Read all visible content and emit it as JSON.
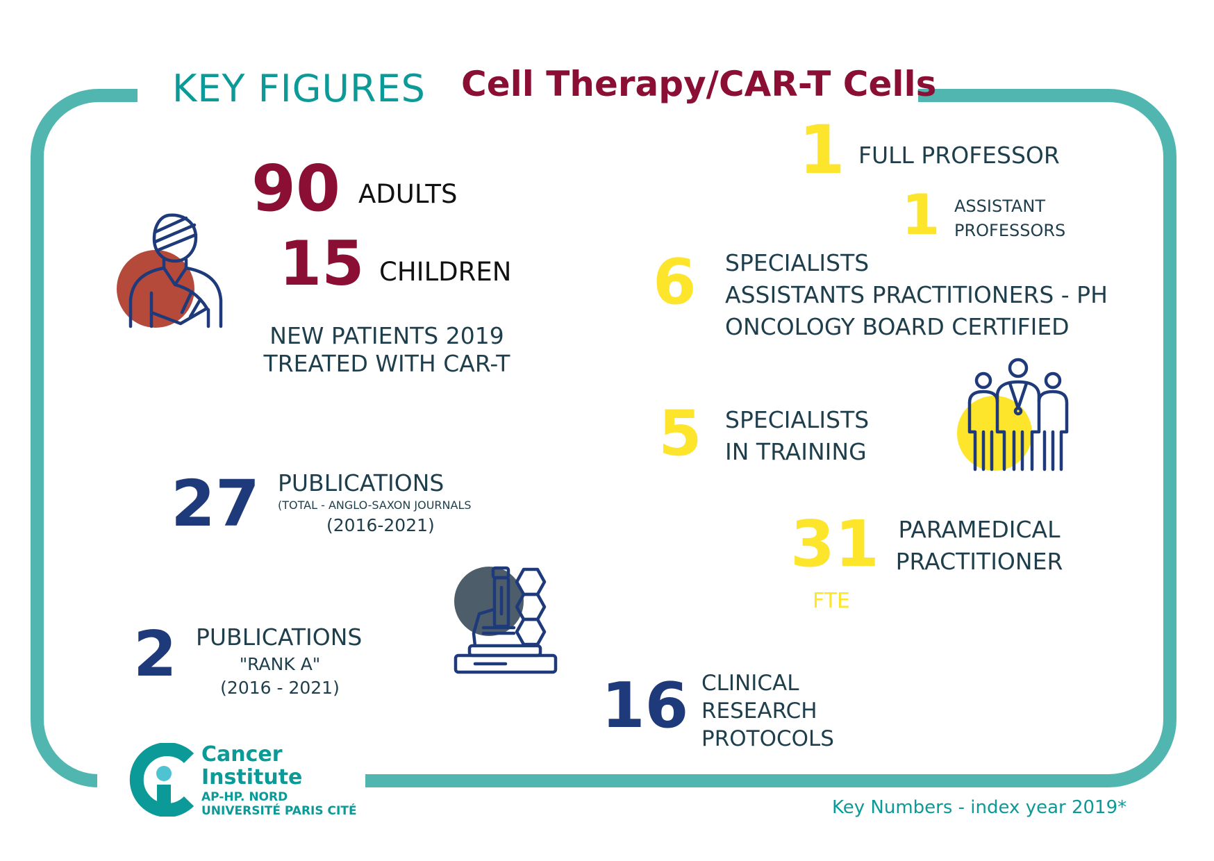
{
  "header": {
    "key_figures": "KEY FIGURES",
    "subject": "Cell Therapy/CAR-T Cells"
  },
  "patients": {
    "adults_value": "90",
    "adults_label": "ADULTS",
    "children_value": "15",
    "children_label": "CHILDREN",
    "caption_line1": "NEW PATIENTS 2019",
    "caption_line2": "TREATED WITH CAR-T"
  },
  "publications": {
    "total_value": "27",
    "total_label": "PUBLICATIONS",
    "total_note": "(TOTAL - ANGLO-SAXON JOURNALS",
    "total_years": "(2016-2021)",
    "rank_value": "2",
    "rank_label": "PUBLICATIONS",
    "rank_note": "\"RANK A\"",
    "rank_years": "(2016 - 2021)"
  },
  "staff": {
    "full_prof_value": "1",
    "full_prof_label": "FULL PROFESSOR",
    "assist_prof_value": "1",
    "assist_prof_line1": "ASSISTANT",
    "assist_prof_line2": "PROFESSORS",
    "specialists_value": "6",
    "specialists_line1": "SPECIALISTS",
    "specialists_line2": "ASSISTANTS PRACTITIONERS - PH",
    "specialists_line3": "ONCOLOGY BOARD CERTIFIED",
    "training_value": "5",
    "training_line1": "SPECIALISTS",
    "training_line2": "IN TRAINING",
    "paramedical_value": "31",
    "paramedical_line1": "PARAMEDICAL",
    "paramedical_line2": "PRACTITIONER",
    "paramedical_unit": "FTE"
  },
  "research": {
    "protocols_value": "16",
    "protocols_line1": "CLINICAL",
    "protocols_line2": "RESEARCH",
    "protocols_line3": "PROTOCOLS"
  },
  "logo": {
    "line1": "Cancer",
    "line2": "Institute",
    "line3": "AP-HP. NORD",
    "line4": "UNIVERSITÉ PARIS CITÉ"
  },
  "footer": {
    "note": "Key Numbers - index year 2019*"
  },
  "icons": {
    "patient": "patient-icon",
    "microscope": "microscope-icon",
    "medical_team": "medical-team-icon"
  },
  "colors": {
    "teal": "#52b6b0",
    "title_teal": "#0b9a97",
    "burgundy": "#8b0f34",
    "navy": "#1f3a7a",
    "yellow": "#fde52b",
    "text": "#1e3e4c"
  }
}
